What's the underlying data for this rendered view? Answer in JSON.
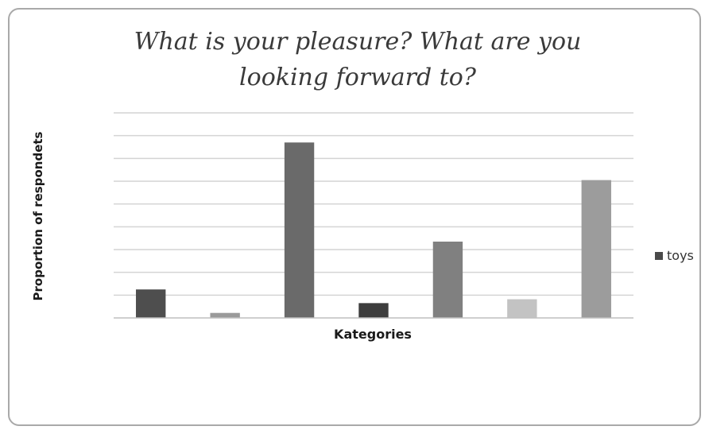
{
  "chart_data": {
    "type": "bar",
    "title": "What is your pleasure? What are you looking forward to?",
    "xlabel": "Kategories",
    "ylabel": "Proportion of respondets",
    "categories": [
      "",
      "",
      "",
      "",
      "",
      "",
      ""
    ],
    "series": [
      {
        "name": "toys",
        "values": [
          1.25,
          0.22,
          7.7,
          0.65,
          3.35,
          0.82,
          6.05
        ],
        "colors": [
          "#4e4e4e",
          "#9a9a9a",
          "#6a6a6a",
          "#3d3d3d",
          "#808080",
          "#c3c3c3",
          "#9c9c9c"
        ]
      }
    ],
    "ylim": [
      0,
      9
    ],
    "grid": true,
    "legend_position": "right"
  }
}
